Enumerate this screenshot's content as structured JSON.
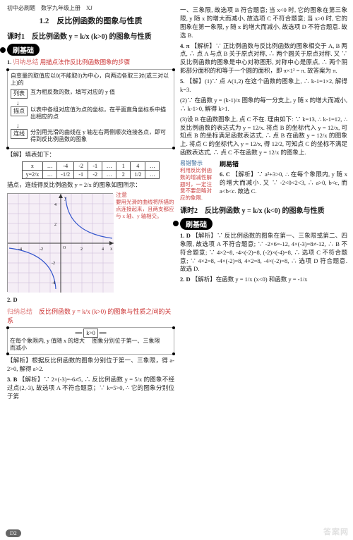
{
  "header": "初中必刷题　数学九年级上册　XJ",
  "section_title": "1.2　反比例函数的图象与性质",
  "lesson1": "课时1　反比例函数 y = k/x (k>0) 的图象与性质",
  "pill_base": "刷基础",
  "q1": {
    "num": "1.",
    "guide": "归纳总结",
    "guide_text": "用描点法作反比例函数图象的步骤",
    "guide_sub": "自变量的取值应以0(不能取0)为中心，向两边各取三对(或三对以上)的",
    "flow": {
      "b1": "列表",
      "t1": "互为相反数的数，填写对应的 y 值",
      "b2": "描点",
      "t2": "以表中各组对应值为点的坐标，在平面直角坐标系中描出相应的点",
      "b3": "连线",
      "t3": "分别用光滑的曲线在 y 轴左右两侧顺次连接各点，即可得到反比例函数的图象"
    },
    "solve": "【解】填表如下：",
    "table": {
      "r1": [
        "x",
        "…",
        "-4",
        "-2",
        "-1",
        "…",
        "1",
        "4",
        "…"
      ],
      "r2": [
        "y=2/x",
        "…",
        "-1/2",
        "-1",
        "-2",
        "…",
        "2",
        "1/2",
        "…"
      ]
    },
    "after_table": "描点，连线得反比例函数 y = 2/x 的图象如图所示：",
    "note_title": "注意",
    "note": "要用光滑的曲线将所描的点连接起来，且两支都应与 x 轴、y 轴相交。"
  },
  "q2": {
    "num": "2.",
    "ans": "D",
    "guide": "归纳总结",
    "guide_text": "反比例函数 y = k/x (k>0) 的图象与性质之间的关系",
    "box_center": "k>0",
    "box_l1": "在每个象限内, y 值随 x 的增大而减小",
    "box_r1": "图象分别位于第一、三象限",
    "solve": "【解析】根据反比例函数的图象分别位于第一、三象限，得 a-2>0, 解得 a>2."
  },
  "q3": {
    "num": "3.",
    "ans": "B",
    "solve": "【解析】∵ 2×(-3)=-6≠5, ∴ 反比例函数 y = 5/x 的图象不经过点(2,-3), 故选项 A 不符合题意；∵ k=5>0, ∴ 它的图象分别位于第"
  },
  "col2": {
    "p1": "一、三象限, 故选项 B 符合题意; 当 x<0 时, 它的图象在第三象限, y 随 x 的增大而减小, 故选项 C 不符合题意; 当 x>0 时, 它的图象在第一象限, y 随 x 的增大而减小, 故选项 D 不符合题意. 故选 B.",
    "q4num": "4.",
    "q4ans": "π",
    "q4": "【解析】∵ 正比例函数与反比例函数的图象相交于 A, B 两点, ∴ 点 A 与点 B 关于原点对称, ∴ 两个圆关于原点对称. 又 ∵ 反比例函数的图象是中心对称图形, 对称中心是原点, ∴ 两个阴影部分面积的和等于一个圆的面积，即 π×1² = π. 故答案为 π.",
    "q5num": "5.",
    "q5": "【解】(1)∵ 点 A(1,2) 在这个函数的图象上, ∴ k-1=1×2, 解得 k=3.",
    "q5b": "(2)∵ 在函数 y = (k-1)/x 图象的每一分支上, y 随 x 的增大而减小, ∴ k-1>0, 解得 k>1.",
    "q5c": "(3)设 B 在函数图象上, 点 C 不在. 理由如下: ∵ k=13, ∴ k-1=12, ∴ 反比例函数的表达式为 y = 12/x. 将点 B 的坐标代入 y = 12/x, 可知点 B 的坐标满足函数表达式, ∴ 点 B 在函数 y = 12/x 的图象上. 将点 C 的坐标代入 y = 12/x, 得 12/2, 可知点 C 的坐标不满足函数表达式, ∴ 点 C 不在函数 y = 12/x 的图象上.",
    "shua_err": "刷易错",
    "tip_title": "易错警示",
    "tip": "利用反比例函数的增减性解题时，一定注意不要忽略对应的象限.",
    "q6num": "6.",
    "q6ans": "C",
    "q6": "【解析】∵ a²+3>0, ∴ 在每个象限内, y 随 x 的增大而减小. 又 ∵ -2<0<2<3, ∴ a>0, b<c, 而 a<b<c. 故选 C.",
    "lesson2": "课时2　反比例函数 y = k/x (k<0) 的图象与性质",
    "pill2": "刷基础",
    "q1b_num": "1.",
    "q1b_ans": "D",
    "q1b": "【解析】∵ 反比例函数的图象在第一、三象限或第二、四象限, 故选项 A 不符合题意; ∵ -2×6=-12, 4×(-3)=8≠-12, ∴ B 不符合题意; ∵ 4×2=8, -4×(-2)=8, (-2)×(-4)=8, ∴ 选项 C 不符合题意; ∵ 4×2=8, -4×(-2)=8, 4×2=8, -4×(-2)=8, ∴ 选项 D 符合题意. 故选 D.",
    "q2b_num": "2.",
    "q2b_ans": "D",
    "q2b": "【解析】在函数 y = 1/x (x<0) 和函数 y = -1/x"
  },
  "footer": "D2",
  "watermark": "答案网",
  "graph": {
    "bg": "#f5eef6",
    "grid": "#b8a8c8",
    "axis": "#333",
    "curve": "#3355cc",
    "xrange": [
      -5,
      5
    ],
    "yrange": [
      -5,
      5
    ]
  }
}
